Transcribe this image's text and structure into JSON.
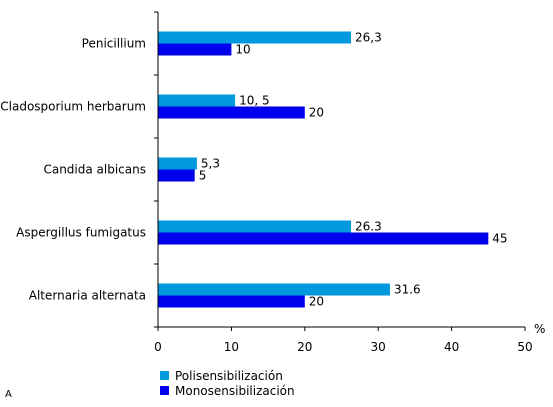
{
  "panel_letter": "A",
  "chart_data": {
    "type": "bar",
    "orientation": "horizontal",
    "categories": [
      "Penicillium",
      "Cladosporium herbarum",
      "Candida albicans",
      "Aspergillus fumigatus",
      "Alternaria alternata"
    ],
    "series": [
      {
        "name": "Polisensibilización",
        "color": "#0099dd",
        "values": [
          26.3,
          10.5,
          5.3,
          26.3,
          31.6
        ],
        "labels": [
          "26,3",
          "10, 5",
          "5,3",
          "26.3",
          "31.6"
        ]
      },
      {
        "name": "Monosensibilización",
        "color": "#0000ee",
        "values": [
          10,
          20,
          5,
          45,
          20
        ],
        "labels": [
          "10",
          "20",
          "5",
          "45",
          "20"
        ]
      }
    ],
    "xlim": [
      0,
      50
    ],
    "xticks": [
      0,
      10,
      20,
      30,
      40,
      50
    ],
    "unit": "%",
    "grid": false,
    "legend_position": "bottom-left"
  }
}
